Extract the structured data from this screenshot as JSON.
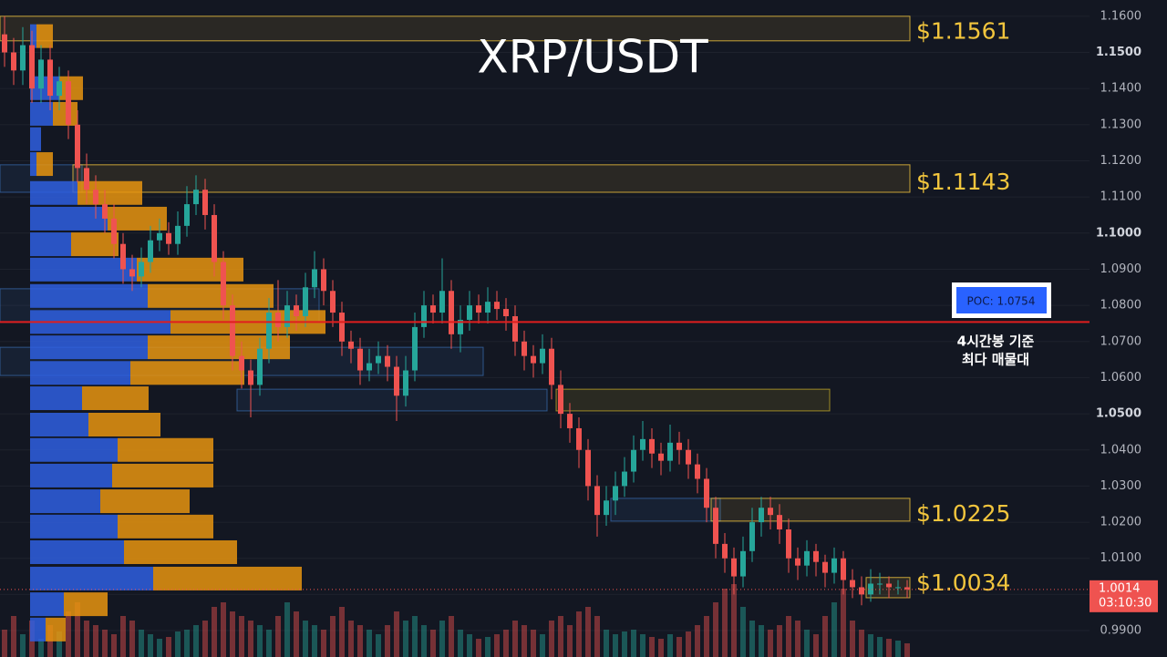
{
  "chart_data": {
    "type": "candlestick",
    "title": "XRP/USDT",
    "ylim": [
      0.9827,
      1.1645
    ],
    "yticks": [
      {
        "value": 0.99,
        "label": "0.9900"
      },
      {
        "value": 1.0,
        "label": "1.0000"
      },
      {
        "value": 1.01,
        "label": "1.0100"
      },
      {
        "value": 1.02,
        "label": "1.0200"
      },
      {
        "value": 1.03,
        "label": "1.0300"
      },
      {
        "value": 1.04,
        "label": "1.0400"
      },
      {
        "value": 1.05,
        "label": "1.0500"
      },
      {
        "value": 1.06,
        "label": "1.0600"
      },
      {
        "value": 1.07,
        "label": "1.0700"
      },
      {
        "value": 1.08,
        "label": "1.0800"
      },
      {
        "value": 1.09,
        "label": "1.0900"
      },
      {
        "value": 1.1,
        "label": "1.1000"
      },
      {
        "value": 1.11,
        "label": "1.1100"
      },
      {
        "value": 1.12,
        "label": "1.1200"
      },
      {
        "value": 1.13,
        "label": "1.1300"
      },
      {
        "value": 1.14,
        "label": "1.1400"
      },
      {
        "value": 1.15,
        "label": "1.1500"
      },
      {
        "value": 1.16,
        "label": "1.1600"
      }
    ],
    "candles": {
      "open": [
        1.155,
        1.15,
        1.145,
        1.152,
        1.14,
        1.148,
        1.138,
        1.142,
        1.13,
        1.118,
        1.112,
        1.108,
        1.104,
        1.097,
        1.09,
        1.088,
        1.092,
        1.098,
        1.1,
        1.097,
        1.102,
        1.108,
        1.112,
        1.105,
        1.092,
        1.08,
        1.066,
        1.062,
        1.058,
        1.068,
        1.078,
        1.074,
        1.08,
        1.077,
        1.085,
        1.09,
        1.084,
        1.078,
        1.07,
        1.068,
        1.062,
        1.064,
        1.066,
        1.063,
        1.055,
        1.062,
        1.074,
        1.08,
        1.078,
        1.084,
        1.072,
        1.076,
        1.08,
        1.078,
        1.081,
        1.079,
        1.077,
        1.07,
        1.066,
        1.064,
        1.068,
        1.058,
        1.05,
        1.046,
        1.04,
        1.03,
        1.022,
        1.026,
        1.03,
        1.034,
        1.04,
        1.043,
        1.039,
        1.037,
        1.042,
        1.04,
        1.036,
        1.032,
        1.024,
        1.014,
        1.01,
        1.005,
        1.012,
        1.02,
        1.024,
        1.022,
        1.018,
        1.01,
        1.008,
        1.012,
        1.009,
        1.006,
        1.01,
        1.004,
        1.002,
        1.0,
        1.003,
        1.003,
        1.002,
        1.002
      ],
      "high": [
        1.16,
        1.154,
        1.157,
        1.156,
        1.152,
        1.152,
        1.146,
        1.145,
        1.134,
        1.122,
        1.116,
        1.112,
        1.108,
        1.1,
        1.094,
        1.096,
        1.102,
        1.104,
        1.103,
        1.106,
        1.113,
        1.116,
        1.115,
        1.108,
        1.095,
        1.083,
        1.07,
        1.065,
        1.071,
        1.082,
        1.087,
        1.084,
        1.083,
        1.089,
        1.095,
        1.093,
        1.087,
        1.081,
        1.073,
        1.071,
        1.068,
        1.07,
        1.069,
        1.066,
        1.066,
        1.078,
        1.084,
        1.083,
        1.093,
        1.087,
        1.08,
        1.084,
        1.083,
        1.085,
        1.084,
        1.082,
        1.08,
        1.073,
        1.069,
        1.072,
        1.071,
        1.062,
        1.053,
        1.049,
        1.043,
        1.033,
        1.03,
        1.034,
        1.038,
        1.044,
        1.048,
        1.046,
        1.042,
        1.047,
        1.045,
        1.043,
        1.039,
        1.035,
        1.027,
        1.017,
        1.013,
        1.016,
        1.024,
        1.027,
        1.027,
        1.025,
        1.021,
        1.013,
        1.015,
        1.014,
        1.011,
        1.013,
        1.012,
        1.007,
        1.005,
        1.007,
        1.006,
        1.005,
        1.004,
        1.004
      ],
      "low": [
        1.146,
        1.141,
        1.141,
        1.136,
        1.136,
        1.134,
        1.134,
        1.126,
        1.114,
        1.108,
        1.104,
        1.1,
        1.093,
        1.086,
        1.084,
        1.085,
        1.089,
        1.095,
        1.094,
        1.094,
        1.099,
        1.105,
        1.101,
        1.088,
        1.076,
        1.062,
        1.057,
        1.049,
        1.055,
        1.064,
        1.07,
        1.071,
        1.073,
        1.074,
        1.082,
        1.08,
        1.074,
        1.066,
        1.064,
        1.058,
        1.059,
        1.061,
        1.059,
        1.048,
        1.052,
        1.059,
        1.071,
        1.075,
        1.075,
        1.068,
        1.067,
        1.073,
        1.075,
        1.075,
        1.076,
        1.073,
        1.066,
        1.062,
        1.06,
        1.061,
        1.054,
        1.046,
        1.042,
        1.035,
        1.026,
        1.016,
        1.019,
        1.022,
        1.027,
        1.031,
        1.037,
        1.035,
        1.033,
        1.034,
        1.036,
        1.032,
        1.028,
        1.02,
        1.01,
        1.006,
        1.0,
        1.002,
        1.009,
        1.016,
        1.018,
        1.014,
        1.006,
        1.004,
        1.005,
        1.005,
        1.002,
        1.003,
        1.0,
        0.999,
        0.997,
        0.998,
        1.0,
        0.999,
        1.0,
        0.999
      ],
      "close": [
        1.15,
        1.145,
        1.152,
        1.14,
        1.148,
        1.138,
        1.142,
        1.13,
        1.118,
        1.112,
        1.108,
        1.104,
        1.097,
        1.09,
        1.088,
        1.092,
        1.098,
        1.1,
        1.097,
        1.102,
        1.108,
        1.112,
        1.105,
        1.092,
        1.08,
        1.066,
        1.062,
        1.058,
        1.068,
        1.078,
        1.074,
        1.08,
        1.077,
        1.085,
        1.09,
        1.084,
        1.078,
        1.07,
        1.068,
        1.062,
        1.064,
        1.066,
        1.063,
        1.055,
        1.062,
        1.074,
        1.08,
        1.078,
        1.084,
        1.072,
        1.076,
        1.08,
        1.078,
        1.081,
        1.079,
        1.077,
        1.07,
        1.066,
        1.064,
        1.068,
        1.058,
        1.05,
        1.046,
        1.04,
        1.03,
        1.022,
        1.026,
        1.03,
        1.034,
        1.04,
        1.043,
        1.039,
        1.037,
        1.042,
        1.04,
        1.036,
        1.032,
        1.024,
        1.014,
        1.01,
        1.005,
        1.012,
        1.02,
        1.024,
        1.022,
        1.018,
        1.01,
        1.008,
        1.012,
        1.009,
        1.006,
        1.01,
        1.004,
        1.002,
        1.0,
        1.003,
        1.003,
        1.002,
        1.002,
        1.0014
      ]
    },
    "volume": [
      30,
      45,
      25,
      40,
      20,
      35,
      28,
      50,
      60,
      40,
      35,
      30,
      25,
      45,
      40,
      30,
      25,
      20,
      22,
      28,
      30,
      35,
      40,
      55,
      60,
      50,
      45,
      40,
      35,
      30,
      45,
      60,
      50,
      40,
      35,
      30,
      45,
      55,
      40,
      35,
      30,
      25,
      35,
      50,
      40,
      45,
      35,
      30,
      40,
      45,
      30,
      25,
      20,
      22,
      25,
      30,
      40,
      35,
      30,
      25,
      40,
      45,
      35,
      50,
      55,
      45,
      30,
      25,
      28,
      30,
      25,
      22,
      20,
      25,
      22,
      28,
      35,
      45,
      60,
      75,
      80,
      55,
      40,
      35,
      30,
      35,
      45,
      40,
      30,
      25,
      45,
      60,
      75,
      40,
      30,
      25,
      22,
      20,
      18,
      15
    ],
    "volume_profile": {
      "levels": [
        1.1545,
        1.1401,
        1.133,
        1.126,
        1.1191,
        1.1111,
        1.104,
        1.0969,
        1.0899,
        1.0826,
        1.0754,
        1.0684,
        1.0613,
        1.0543,
        1.047,
        1.04,
        1.0329,
        1.0258,
        1.0188,
        1.0117,
        1.0044,
        0.9973,
        0.9903
      ],
      "buy": [
        7,
        32,
        25,
        12,
        7,
        52,
        85,
        45,
        117,
        129,
        154,
        129,
        110,
        57,
        64,
        96,
        90,
        77,
        96,
        103,
        135,
        37,
        17
      ],
      "sell": [
        18,
        26,
        27,
        0,
        18,
        71,
        65,
        52,
        117,
        138,
        170,
        156,
        125,
        73,
        79,
        105,
        111,
        98,
        105,
        124,
        163,
        48,
        22
      ],
      "buy_color": "#2f5fe0",
      "sell_color": "#e8940f"
    },
    "zones": [
      {
        "value": 1.1561,
        "label": "$1.1561",
        "high": 1.16,
        "low": 1.1532,
        "start": 0,
        "end": 99
      },
      {
        "value": 1.1143,
        "label": "$1.1143",
        "high": 1.1189,
        "low": 1.1113,
        "start": 8,
        "end": 99
      },
      {
        "value": 1.0225,
        "label": "$1.0225",
        "high": 1.0266,
        "low": 1.0203,
        "start": 78,
        "end": 99
      },
      {
        "value": 1.0034,
        "label": "$1.0034",
        "high": 1.0047,
        "low": 0.9991,
        "start": 95,
        "end": 99
      }
    ],
    "ranges": [
      {
        "high": 1.0568,
        "low": 1.0508,
        "start": 61,
        "end": 90,
        "color": "#d4b82a"
      },
      {
        "high": 1.1189,
        "low": 1.1113,
        "start": 0,
        "end": 8,
        "color": "#3b6fb5"
      },
      {
        "high": 1.0846,
        "low": 1.0753,
        "start": 0,
        "end": 34,
        "color": "#3b6fb5"
      },
      {
        "high": 1.0684,
        "low": 1.0606,
        "start": 0,
        "end": 52,
        "color": "#3b6fb5"
      },
      {
        "high": 1.0568,
        "low": 1.0508,
        "start": 26,
        "end": 59,
        "color": "#3b6fb5"
      },
      {
        "high": 1.0266,
        "low": 1.0203,
        "start": 67,
        "end": 78,
        "color": "#3b6fb5"
      }
    ],
    "poc": {
      "value": 1.0754,
      "label": "POC: 1.0754",
      "note": [
        "4시간봉 기준",
        "최다 매물대"
      ]
    },
    "last": {
      "value": 1.0014,
      "countdown": "03:10:30"
    },
    "up_color": "#26a69a",
    "down_color": "#ef5350",
    "zone_color": "#f2c53d",
    "poc_color": "#e01e1e"
  }
}
